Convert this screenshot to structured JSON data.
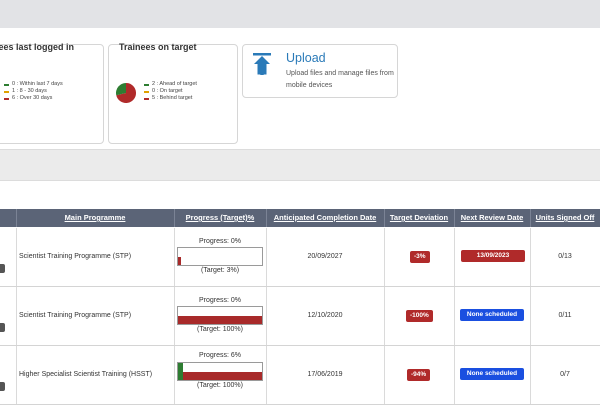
{
  "widgets": {
    "last_logged_in": {
      "title": "Trainees last logged in",
      "legend": [
        {
          "label": "0 : Within last 7 days",
          "color": "#2e7d32",
          "count": 0
        },
        {
          "label": "1 : 8 - 30 days",
          "color": "#e0a100",
          "count": 1
        },
        {
          "label": "6 : Over 30 days",
          "color": "#b02a2a",
          "count": 6
        }
      ]
    },
    "on_target": {
      "title": "Trainees on target",
      "legend": [
        {
          "label": "2 : Ahead of target",
          "color": "#2e7d32",
          "count": 2
        },
        {
          "label": "0 : On target",
          "color": "#e0a100",
          "count": 0
        },
        {
          "label": "5 : Behind target",
          "color": "#b02a2a",
          "count": 5
        }
      ]
    },
    "upload": {
      "title": "Upload",
      "description": "Upload files and manage files from mobile devices",
      "icon": "upload-arrow-icon",
      "color": "#2a7ab8"
    }
  },
  "table": {
    "headers": {
      "main_programme": "Main Programme",
      "progress": "Progress (Target)%",
      "completion": "Anticipated Completion Date",
      "deviation": "Target Deviation",
      "review": "Next Review Date",
      "units": "Units Signed Off"
    },
    "rows": [
      {
        "programme": "Scientist Training Programme (STP)",
        "progress_label": "Progress: 0%",
        "target_label": "(Target: 3%)",
        "progress_pct": 0,
        "target_pct": 3,
        "completion": "20/09/2027",
        "deviation": "-3%",
        "review": "13/09/2023",
        "review_color": "#b02a2a",
        "units": "0/13"
      },
      {
        "programme": "Scientist Training Programme (STP)",
        "progress_label": "Progress: 0%",
        "target_label": "(Target: 100%)",
        "progress_pct": 0,
        "target_pct": 100,
        "completion": "12/10/2020",
        "deviation": "-100%",
        "review": "None scheduled",
        "review_color": "#1a4fe0",
        "units": "0/11"
      },
      {
        "programme": "Higher Specialist Scientist Training (HSST)",
        "progress_label": "Progress: 6%",
        "target_label": "(Target: 100%)",
        "progress_pct": 6,
        "target_pct": 100,
        "completion": "17/06/2019",
        "deviation": "-94%",
        "review": "None scheduled",
        "review_color": "#1a4fe0",
        "units": "0/7"
      }
    ]
  },
  "colors": {
    "header_bg": "#5b6477",
    "target_bar": "#a82a2a",
    "progress_bar": "#2e7d32",
    "deviation_badge": "#b02a2a"
  }
}
